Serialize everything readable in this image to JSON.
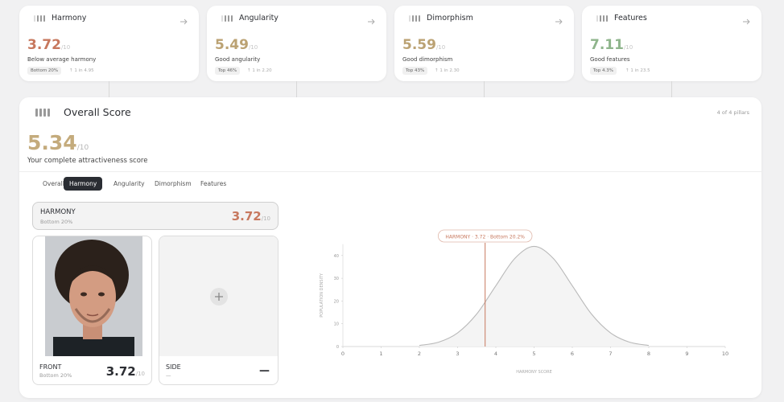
{
  "pillars": [
    {
      "title": "Harmony",
      "score": 3.72,
      "out_of": "/10",
      "description": "Below average harmony",
      "rank": "Bottom 20%",
      "odds": "↑ 1 in 4.95",
      "color": "#c7785e"
    },
    {
      "title": "Angularity",
      "score": 5.49,
      "out_of": "/10",
      "description": "Good angularity",
      "rank": "Top 46%",
      "odds": "↑ 1 in 2.20",
      "color": "#bba273"
    },
    {
      "title": "Dimorphism",
      "score": 5.59,
      "out_of": "/10",
      "description": "Good dimorphism",
      "rank": "Top 43%",
      "odds": "↑ 1 in 2.30",
      "color": "#bba273"
    },
    {
      "title": "Features",
      "score": 7.11,
      "out_of": "/10",
      "description": "Good features",
      "rank": "Top 4.3%",
      "odds": "↑ 1 in 23.5",
      "color": "#8fb58c"
    }
  ],
  "overall": {
    "title": "Overall Score",
    "count": "4 of 4 pillars",
    "score": 5.34,
    "out_of": "/10",
    "caption": "Your complete attractiveness score",
    "color": "#c4ab7c"
  },
  "tabs": [
    "Overall",
    "Harmony",
    "Angularity",
    "Dimorphism",
    "Features"
  ],
  "active_tab": 1,
  "selected": {
    "label": "HARMONY",
    "rank": "Bottom 20%",
    "score": 3.72,
    "out_of": "/10"
  },
  "photos": [
    {
      "label": "FRONT",
      "rank": "Bottom 20%",
      "score": 3.72,
      "out_of": "/10"
    },
    {
      "label": "SIDE",
      "rank": "—",
      "score": "—"
    }
  ],
  "chart_data": {
    "type": "line",
    "marker_label": "HARMONY · 3.72 · Bottom 20.2%",
    "marker_x": 3.72,
    "marker_color": "#c7785e",
    "x_label": "HARMONY SCORE",
    "y_label": "POPULATION DENSITY",
    "x": [
      2,
      2.5,
      3,
      3.5,
      4,
      4.5,
      5,
      5.5,
      6,
      6.5,
      7,
      7.5,
      8
    ],
    "values": [
      0.5,
      1.9,
      6,
      14.3,
      26.7,
      38.8,
      44,
      38.8,
      26.7,
      14.3,
      6,
      1.9,
      0.5
    ],
    "color": "#b9b9b9",
    "xlim": [
      0,
      10
    ],
    "ylim": [
      0,
      45
    ],
    "xticks": [
      0,
      1,
      2,
      3,
      4,
      5,
      6,
      7,
      8,
      9,
      10
    ],
    "yticks": [
      0,
      10,
      20,
      30,
      40
    ]
  }
}
